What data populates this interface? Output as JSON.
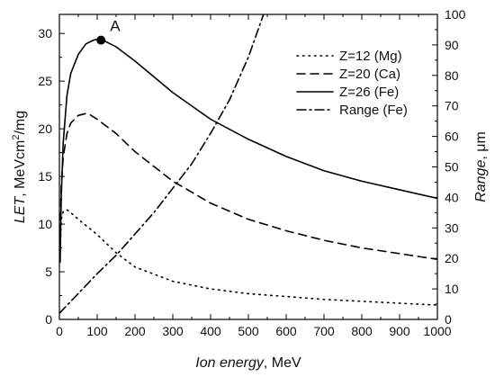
{
  "chart_data": {
    "type": "line",
    "xlabel": {
      "italic": "Ion energy",
      "rest": ", MeV"
    },
    "ylabel_left": {
      "italic": "LET",
      "rest": ", MeVcm",
      "sup": "2",
      "rest2": "/mg"
    },
    "ylabel_right": {
      "italic": "Range",
      "rest": ", μm"
    },
    "xlim": [
      0,
      1000
    ],
    "ylim_left": [
      0,
      32
    ],
    "ylim_right": [
      0,
      100
    ],
    "x_ticks": [
      "0",
      "100",
      "200",
      "300",
      "400",
      "500",
      "600",
      "700",
      "800",
      "900",
      "1000"
    ],
    "y_left_ticks": [
      "0",
      "5",
      "10",
      "15",
      "20",
      "25",
      "30"
    ],
    "y_right_ticks": [
      "0",
      "10",
      "20",
      "30",
      "40",
      "50",
      "60",
      "70",
      "80",
      "90",
      "100"
    ],
    "legend": {
      "position": "top-right"
    },
    "series": [
      {
        "name": "Z=12 (Mg)",
        "axis": "left",
        "style": "dotted",
        "x": [
          2,
          5,
          10,
          20,
          30,
          50,
          100,
          150,
          200,
          300,
          400,
          500,
          600,
          700,
          800,
          900,
          1000
        ],
        "y": [
          7.5,
          10.5,
          11.3,
          11.5,
          11.2,
          10.5,
          8.9,
          7.0,
          5.5,
          4.0,
          3.2,
          2.7,
          2.4,
          2.1,
          1.9,
          1.7,
          1.5
        ]
      },
      {
        "name": "Z=20 (Ca)",
        "axis": "left",
        "style": "dashed",
        "x": [
          2,
          5,
          10,
          20,
          30,
          50,
          70,
          80,
          100,
          150,
          200,
          300,
          400,
          500,
          600,
          700,
          800,
          900,
          1000
        ],
        "y": [
          9.0,
          14.0,
          17.0,
          19.5,
          20.6,
          21.4,
          21.6,
          21.5,
          21.0,
          19.5,
          17.6,
          14.5,
          12.2,
          10.5,
          9.3,
          8.3,
          7.5,
          6.9,
          6.3
        ]
      },
      {
        "name": "Z=26 (Fe)",
        "axis": "left",
        "style": "solid",
        "x": [
          2,
          5,
          10,
          20,
          30,
          50,
          70,
          90,
          105,
          120,
          150,
          200,
          300,
          400,
          500,
          600,
          700,
          800,
          900,
          1000
        ],
        "y": [
          6.0,
          13.0,
          18.5,
          23.5,
          25.8,
          27.8,
          28.9,
          29.3,
          29.4,
          29.2,
          28.6,
          27.1,
          23.8,
          21.0,
          18.9,
          17.1,
          15.6,
          14.5,
          13.6,
          12.7
        ]
      },
      {
        "name": "Range (Fe)",
        "axis": "right",
        "style": "dashdot",
        "x": [
          0,
          50,
          100,
          150,
          200,
          250,
          300,
          350,
          400,
          450,
          500,
          540
        ],
        "y": [
          2,
          8.5,
          15,
          21,
          28,
          35,
          43,
          51,
          61,
          72,
          86,
          100
        ]
      }
    ],
    "annotations": [
      {
        "text": "A",
        "x": 110,
        "y": 29.3,
        "axis": "left"
      }
    ]
  }
}
